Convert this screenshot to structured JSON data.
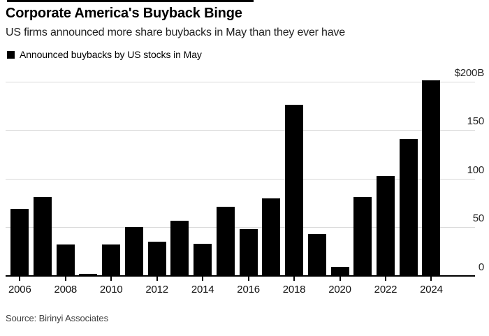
{
  "header": {
    "title": "Corporate America's Buyback Binge",
    "subtitle": "US firms announced more share buybacks in May than they ever have"
  },
  "legend": {
    "marker_color": "#000000",
    "label": "Announced buybacks by US stocks in May"
  },
  "source": "Source: Birinyi Associates",
  "chart_data": {
    "type": "bar",
    "title": "Announced buybacks by US stocks in May",
    "unit": "USD billions",
    "categories": [
      2006,
      2007,
      2008,
      2009,
      2010,
      2011,
      2012,
      2013,
      2014,
      2015,
      2016,
      2017,
      2018,
      2019,
      2020,
      2021,
      2022,
      2023,
      2024
    ],
    "values": [
      69,
      81,
      32,
      2,
      32,
      50,
      35,
      57,
      33,
      71,
      48,
      80,
      176,
      43,
      9,
      81,
      103,
      141,
      201
    ],
    "x_tick_labels": [
      "2006",
      "2008",
      "2010",
      "2012",
      "2014",
      "2016",
      "2018",
      "2020",
      "2022",
      "2024"
    ],
    "y_ticks": [
      {
        "level": 200,
        "label": "$200B"
      },
      {
        "level": 150,
        "label": "150"
      },
      {
        "level": 100,
        "label": "100"
      },
      {
        "level": 50,
        "label": "50"
      },
      {
        "level": 0,
        "label": "0"
      }
    ],
    "ylim": [
      0,
      210
    ],
    "xlabel": "",
    "ylabel": "$200B",
    "bar_color": "#000000",
    "grid": "horizontal",
    "gridline_color": "#d9d9d9",
    "y_axis_side": "right",
    "legend_position": "top-left"
  }
}
